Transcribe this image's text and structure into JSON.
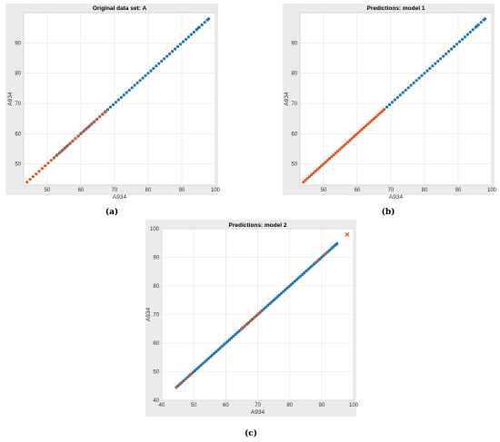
{
  "colors": {
    "blue": "#1f77b4",
    "orange": "#e8541e"
  },
  "chart_data": [
    {
      "type": "scatter",
      "title": "Original data set: A",
      "xlabel": "A934",
      "ylabel": "A934",
      "caption": "(a)",
      "xlim": [
        43,
        100
      ],
      "ylim": [
        43,
        100
      ],
      "xticks": [
        50,
        60,
        70,
        80,
        90,
        100
      ],
      "yticks": [
        50,
        60,
        70,
        80,
        90
      ],
      "grid": true,
      "series": [
        {
          "color": "blue",
          "x_range": [
            52,
            98
          ],
          "step": 0.8,
          "marker": "dot",
          "x_extra": [
            94.5,
            95,
            98
          ]
        },
        {
          "color": "orange",
          "x_range": [
            44,
            67.5
          ],
          "step": 0.9,
          "marker": "dot"
        }
      ]
    },
    {
      "type": "scatter",
      "title": "Predictions: model 1",
      "xlabel": "A934",
      "ylabel": "A934",
      "caption": "(b)",
      "xlim": [
        43,
        100
      ],
      "ylim": [
        43,
        100
      ],
      "xticks": [
        50,
        60,
        70,
        80,
        90,
        100
      ],
      "yticks": [
        50,
        60,
        70,
        80,
        90
      ],
      "grid": true,
      "series": [
        {
          "color": "blue",
          "x_range": [
            68,
            98
          ],
          "step": 0.8,
          "marker": "dot",
          "x_extra": [
            95.5,
            98
          ]
        },
        {
          "color": "orange",
          "x_range": [
            44,
            68
          ],
          "step": 0.6,
          "marker": "dot"
        }
      ]
    },
    {
      "type": "scatter",
      "title": "Predictions: model 2",
      "xlabel": "A934",
      "ylabel": "A934",
      "caption": "(c)",
      "xlim": [
        40,
        100
      ],
      "ylim": [
        40,
        100
      ],
      "xticks": [
        40,
        50,
        60,
        70,
        80,
        90,
        100
      ],
      "yticks": [
        40,
        50,
        60,
        70,
        80,
        90,
        100
      ],
      "grid": true,
      "series": [
        {
          "color": "blue",
          "x_range": [
            45,
            95
          ],
          "step": 0.6,
          "marker": "dot",
          "x_extra": [
            93.5,
            94.5
          ]
        },
        {
          "color": "orange",
          "x_range": [
            44.5,
            49
          ],
          "step": 1.5,
          "marker": "dot"
        },
        {
          "color": "orange",
          "x_range": [
            65,
            71
          ],
          "step": 1.0,
          "marker": "dot"
        },
        {
          "color": "orange",
          "x_range": [
            89,
            91
          ],
          "step": 2,
          "marker": "dot"
        },
        {
          "color": "orange",
          "points": [
            [
              98,
              98
            ]
          ],
          "marker": "x"
        }
      ]
    }
  ]
}
